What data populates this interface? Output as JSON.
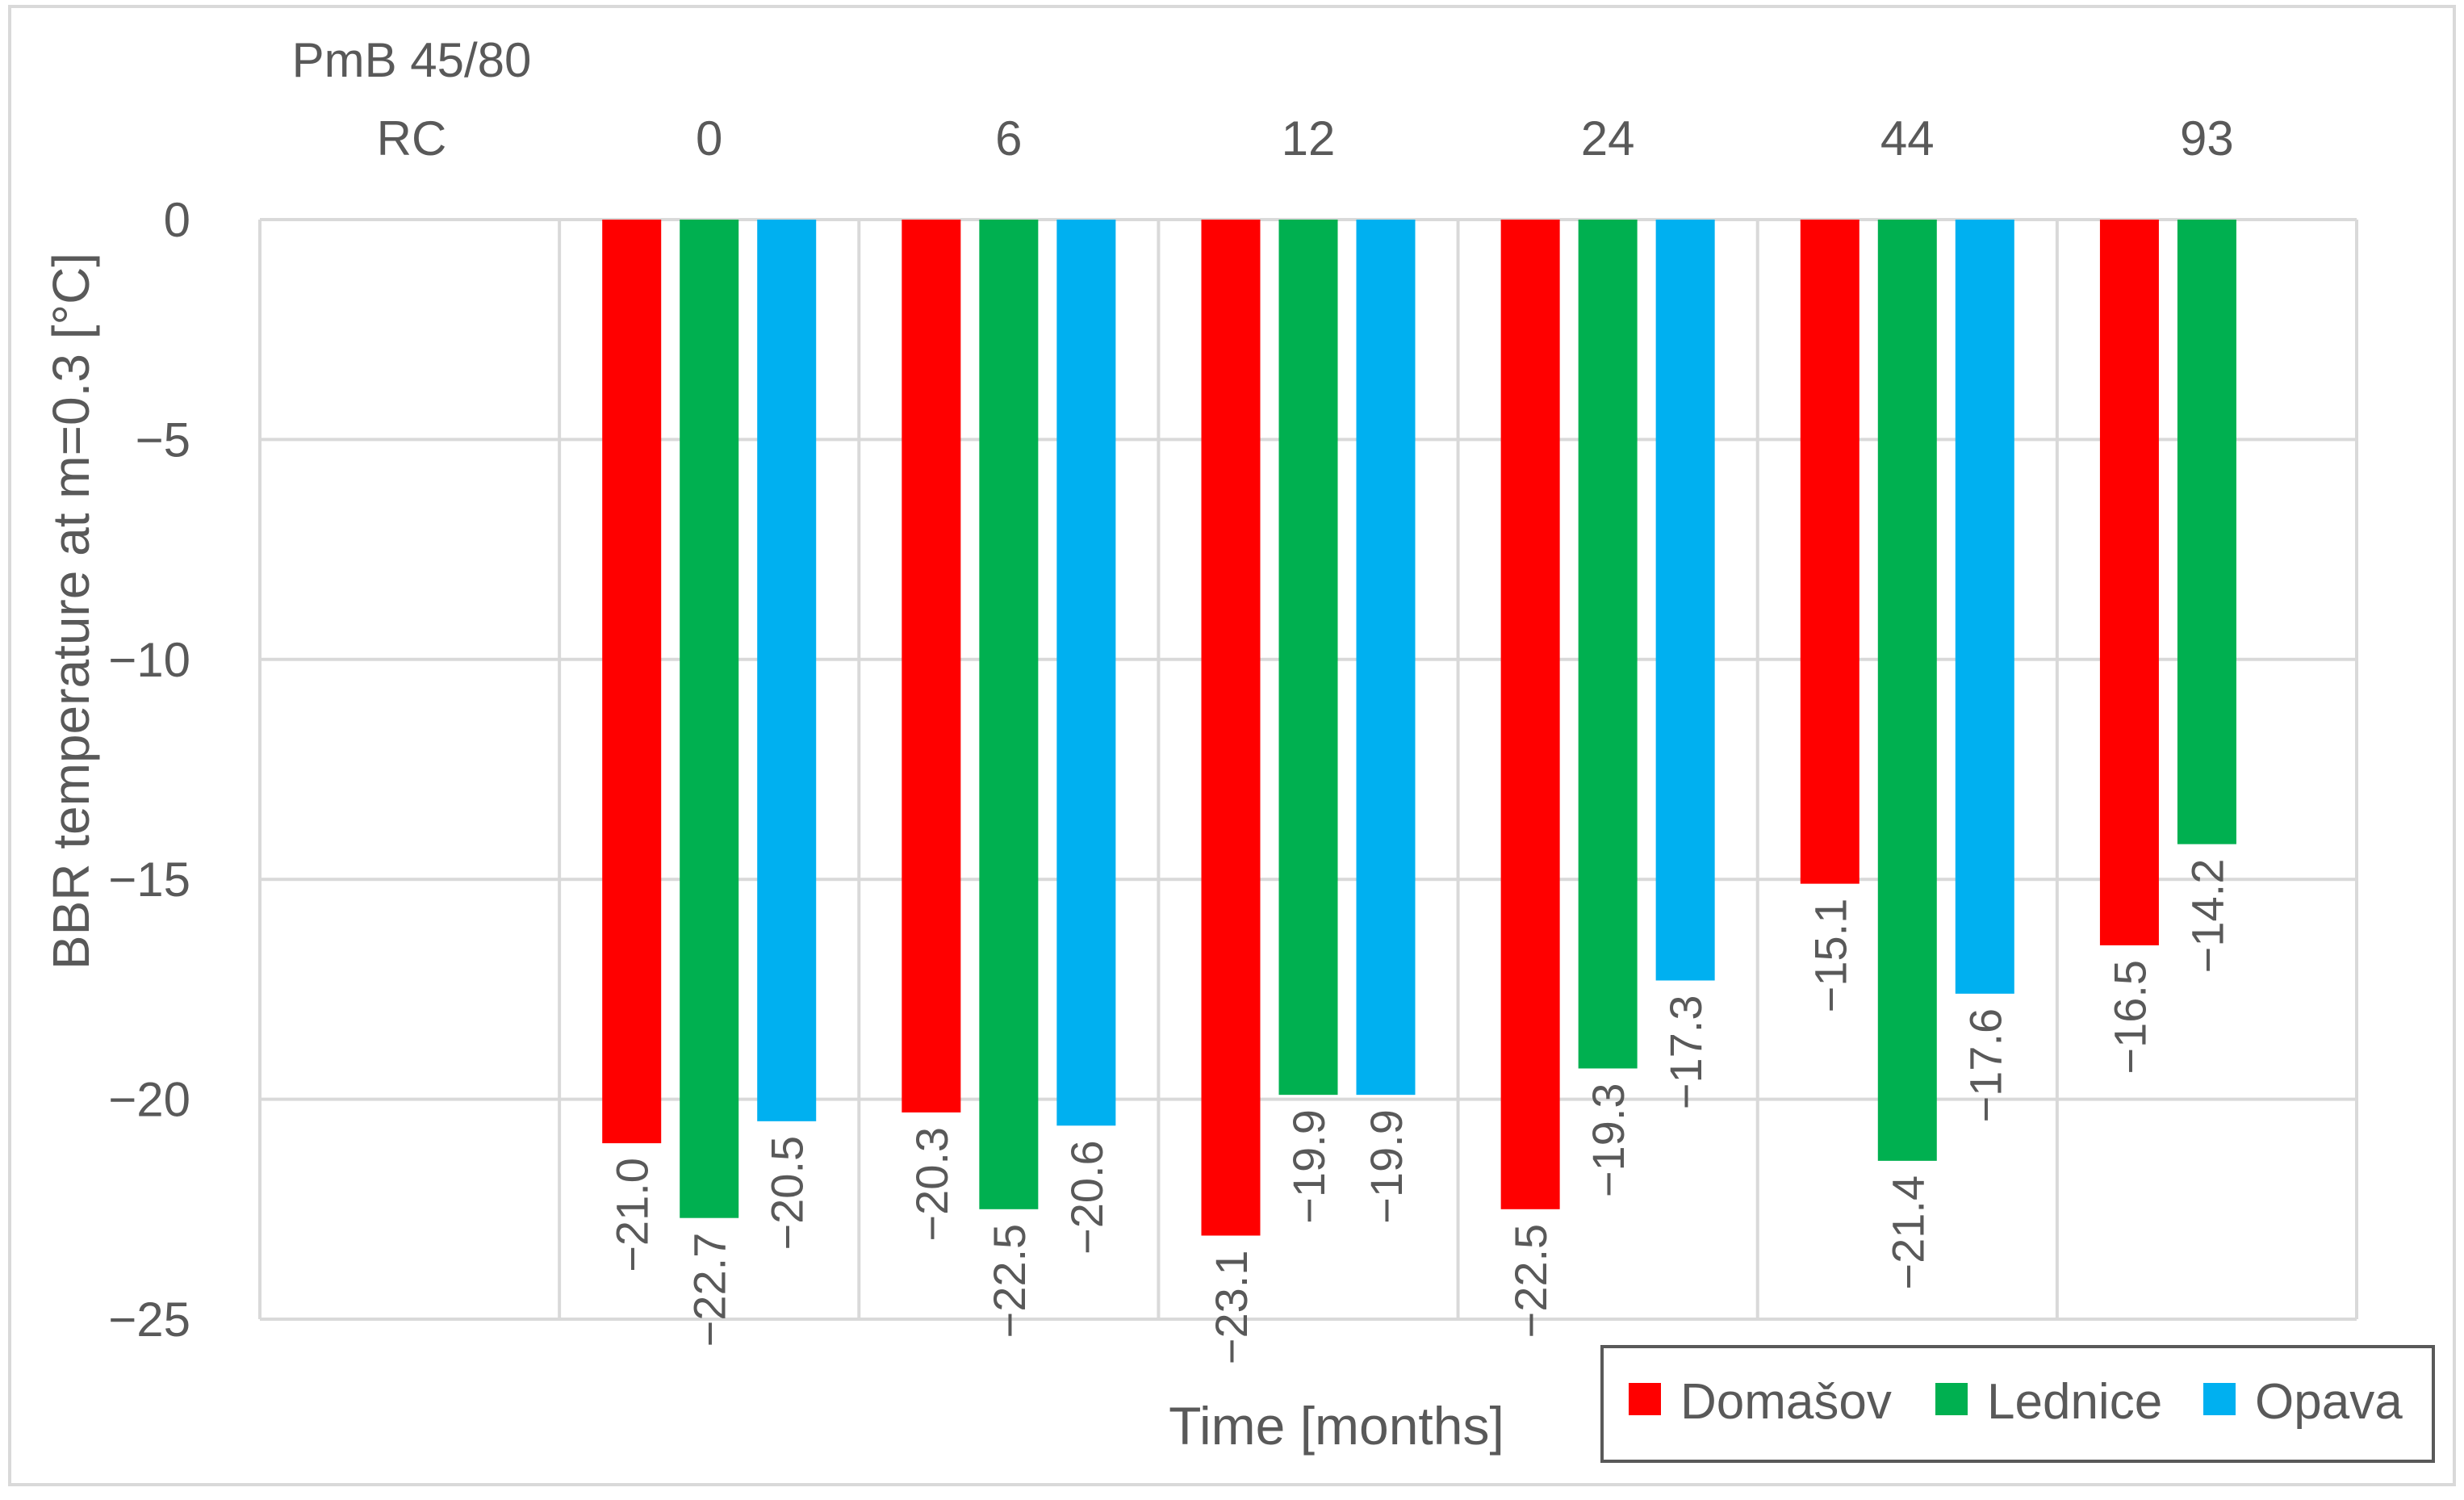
{
  "chart_data": {
    "type": "bar",
    "title": "",
    "series_label_top": "PmB 45/80",
    "category_axis_label": "RC",
    "categories": [
      "0",
      "6",
      "12",
      "24",
      "44",
      "93"
    ],
    "xlabel": "Time [months]",
    "ylabel": "BBR temperature at m=0.3 [°C]",
    "ylim": [
      -25,
      0
    ],
    "yticks": [
      0,
      -5,
      -10,
      -15,
      -20,
      -25
    ],
    "ytick_labels": [
      "0",
      "−5",
      "−10",
      "−15",
      "−20",
      "−25"
    ],
    "grid": true,
    "legend_position": "bottom-right",
    "series": [
      {
        "name": "Domašov",
        "color": "#FF0000",
        "values": [
          -21.0,
          -20.3,
          -23.1,
          -22.5,
          -15.1,
          -16.5
        ],
        "labels": [
          "−21.0",
          "−20.3",
          "−23.1",
          "−22.5",
          "−15.1",
          "−16.5"
        ]
      },
      {
        "name": "Lednice",
        "color": "#00B050",
        "values": [
          -22.7,
          -22.5,
          -19.9,
          -19.3,
          -21.4,
          -14.2
        ],
        "labels": [
          "−22.7",
          "−22.5",
          "−19.9",
          "−19.3",
          "−21.4",
          "−14.2"
        ]
      },
      {
        "name": "Opava",
        "color": "#00B0F0",
        "values": [
          -20.5,
          -20.6,
          -19.9,
          -17.3,
          -17.6,
          null
        ],
        "labels": [
          "−20.5",
          "−20.6",
          "−19.9",
          "−17.3",
          "−17.6",
          null
        ]
      }
    ]
  }
}
